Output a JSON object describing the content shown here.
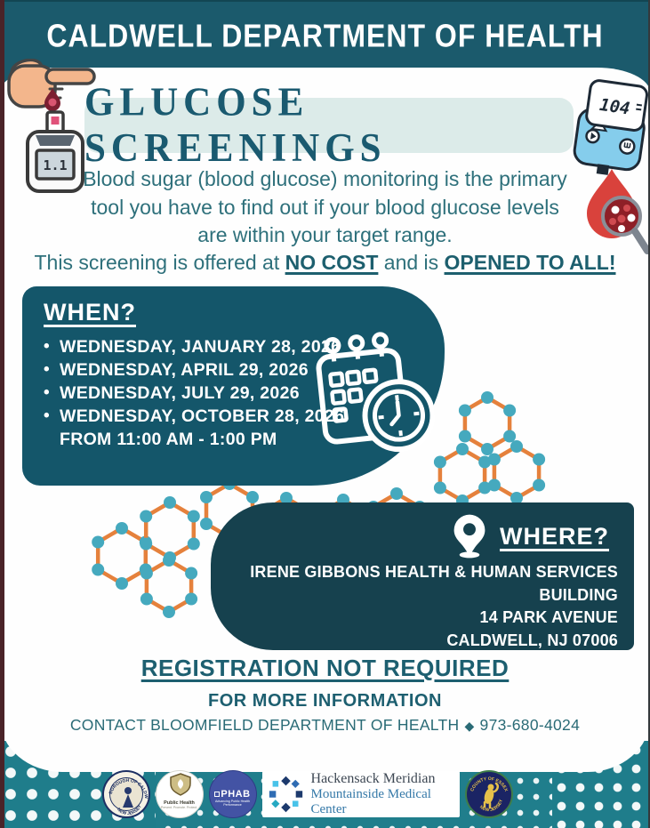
{
  "header": {
    "title": "CALDWELL DEPARTMENT OF HEALTH"
  },
  "hero": {
    "title": "GLUCOSE SCREENINGS",
    "intro": "Blood sugar (blood glucose) monitoring is the primary tool you have to find out if your blood glucose levels are within your target range.",
    "cost": {
      "prefix": "This screening is offered at ",
      "no_cost": "NO COST",
      "and_is": " and is ",
      "opened": "OPENED TO ALL!"
    }
  },
  "when": {
    "heading": "WHEN?",
    "items": [
      "WEDNESDAY, JANUARY 28, 2026",
      "WEDNESDAY, APRIL 29, 2026",
      "WEDNESDAY, JULY 29, 2026",
      "WEDNESDAY, OCTOBER 28, 2026"
    ],
    "time_line": "FROM 11:00 AM - 1:00 PM"
  },
  "where": {
    "heading": "WHERE?",
    "lines": [
      "IRENE GIBBONS HEALTH & HUMAN SERVICES BUILDING",
      "14 PARK AVENUE",
      "CALDWELL, NJ 07006"
    ]
  },
  "footer": {
    "registration": "REGISTRATION NOT REQUIRED",
    "more_info": "FOR MORE INFORMATION",
    "contact": "CONTACT BLOOMFIELD DEPARTMENT OF HEALTH",
    "diamond": "◆",
    "phone": "973-680-4024"
  },
  "devices": {
    "meter_right_reading": "104",
    "meter_left_reading": "1.1"
  },
  "logos": {
    "caldwell": {
      "top": "BOROUGH OF CALDWELL",
      "bottom": "NEW JERSEY"
    },
    "public_health": {
      "label": "Public Health",
      "sub": "Prevent. Promote. Protect."
    },
    "phab": {
      "label": "PHAB",
      "sub": "Advancing Public Health Performance"
    },
    "hackensack": {
      "line1": "Hackensack Meridian",
      "line2": "Mountainside Medical Center"
    },
    "essex": {
      "top": "COUNTY OF ESSEX",
      "bottom": "NEW JERSEY"
    }
  },
  "colors": {
    "header_teal": "#1b5a6c",
    "when_teal": "#14566a",
    "where_teal": "#16414e",
    "title_box_bg": "#dcebe9",
    "body_text": "#2e707b",
    "molecule_edge": "#e5813c",
    "molecule_node": "#45a9be",
    "band_teal": "#207e8c",
    "accent_maroon": "#4a2328"
  }
}
